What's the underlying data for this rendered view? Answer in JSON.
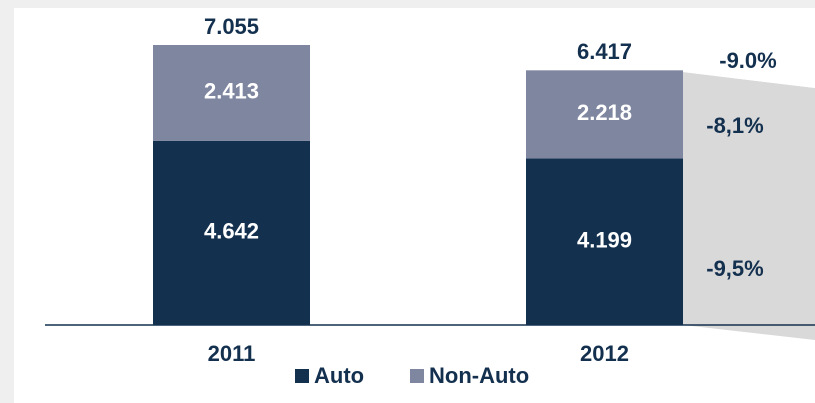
{
  "chart_data": {
    "type": "stacked_bar",
    "categories": [
      "2011",
      "2012"
    ],
    "series": [
      {
        "name": "Auto",
        "color": "#14304f",
        "values": [
          4.642,
          4.199
        ]
      },
      {
        "name": "Non-Auto",
        "color": "#7f86a0",
        "values": [
          2.413,
          2.218
        ]
      }
    ],
    "totals": [
      7.055,
      6.417
    ],
    "annotations": {
      "total": "-9.0%",
      "series": [
        "-9,5%",
        "-8,1%"
      ]
    }
  }
}
